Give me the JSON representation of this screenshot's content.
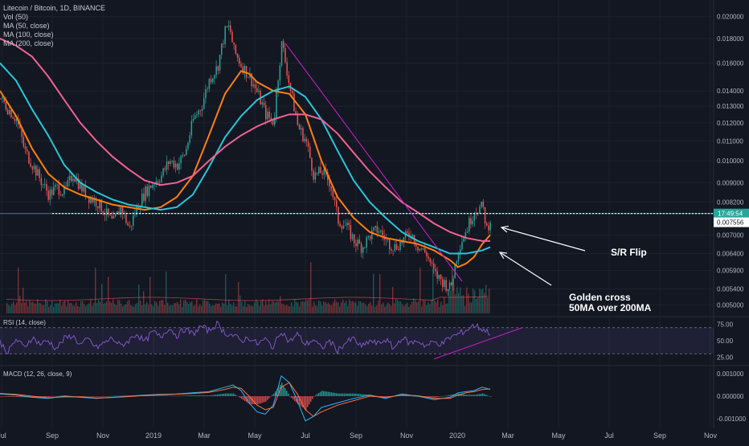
{
  "header": {
    "symbol_line": "Litecoin / Bitcoin, 1D, BINANCE",
    "indicators": [
      "Vol (50)",
      "MA (50, close)",
      "MA (100, close)",
      "MA (200, close)"
    ]
  },
  "colors": {
    "background": "#131722",
    "grid": "#1e222d",
    "price_up": "#26a69a",
    "price_down": "#ef5350",
    "ma50": "#ff7f0e",
    "ma100": "#26c6da",
    "ma200": "#f06292",
    "trendline": "#c020c0",
    "rsi": "#7e57c2",
    "macd_line": "#29b6f6",
    "signal_line": "#ff7043",
    "label_current": "#26a69a",
    "label_last": "#ffffff"
  },
  "chart_data": {
    "type": "line",
    "xaxis": {
      "labels": [
        "Jul",
        "Sep",
        "Nov",
        "2019",
        "Mar",
        "May",
        "Jul",
        "Sep",
        "Nov",
        "2020",
        "Mar",
        "May",
        "Jul",
        "Sep",
        "Nov"
      ]
    },
    "price_pane": {
      "scale": "log",
      "ylim": [
        0.0048,
        0.0215
      ],
      "ticks": [
        "0.020000",
        "0.018000",
        "0.016000",
        "0.014000",
        "0.013000",
        "0.012000",
        "0.011000",
        "0.010000",
        "0.009000",
        "0.008200",
        "0.007000",
        "0.006400",
        "0.005900",
        "0.005400",
        "0.005000"
      ],
      "tick_values": [
        0.02,
        0.018,
        0.016,
        0.014,
        0.013,
        0.012,
        0.011,
        0.01,
        0.009,
        0.0082,
        0.007,
        0.0064,
        0.0059,
        0.0054,
        0.005
      ],
      "price_label": {
        "text": "17:49:54",
        "value": 0.00776
      },
      "last_label": {
        "text": "0.007556",
        "value": 0.007556
      },
      "sr_line_value": 0.00776,
      "series": [
        {
          "key": "price",
          "x": [
            0,
            10,
            20,
            30,
            40,
            50,
            60,
            70,
            80,
            90,
            100,
            110,
            120,
            130,
            140,
            150,
            160,
            170,
            180,
            190,
            200,
            210,
            220,
            230,
            240,
            250,
            260,
            270,
            280,
            285,
            290,
            300,
            310,
            320,
            330,
            340,
            350,
            360,
            370,
            380,
            390,
            400,
            410,
            420,
            430,
            440,
            450,
            460,
            470,
            480,
            490,
            500,
            510,
            520,
            530,
            540,
            550,
            560,
            570,
            580,
            590,
            600,
            605,
            610
          ],
          "y": [
            0.0135,
            0.0128,
            0.0122,
            0.0105,
            0.0098,
            0.0091,
            0.0085,
            0.0088,
            0.0086,
            0.0094,
            0.0088,
            0.0084,
            0.0082,
            0.0078,
            0.0074,
            0.008,
            0.0072,
            0.008,
            0.0086,
            0.009,
            0.0093,
            0.01,
            0.0098,
            0.0104,
            0.0122,
            0.013,
            0.0148,
            0.0157,
            0.0188,
            0.019,
            0.017,
            0.0158,
            0.015,
            0.0138,
            0.0125,
            0.012,
            0.0176,
            0.0142,
            0.0118,
            0.011,
            0.0093,
            0.0095,
            0.009,
            0.0075,
            0.0073,
            0.0068,
            0.0066,
            0.007,
            0.0072,
            0.0068,
            0.0066,
            0.0068,
            0.0071,
            0.0066,
            0.0064,
            0.0058,
            0.0056,
            0.0054,
            0.0066,
            0.0072,
            0.0079,
            0.008,
            0.0072,
            0.0076
          ]
        },
        {
          "key": "ma50",
          "x": [
            0,
            20,
            40,
            60,
            80,
            100,
            120,
            140,
            160,
            180,
            200,
            220,
            240,
            260,
            280,
            300,
            310,
            320,
            340,
            360,
            380,
            400,
            420,
            440,
            460,
            480,
            500,
            520,
            540,
            560,
            570,
            580,
            590,
            600,
            610
          ],
          "y": [
            0.014,
            0.0124,
            0.0106,
            0.0094,
            0.0088,
            0.0085,
            0.0083,
            0.0081,
            0.008,
            0.0079,
            0.008,
            0.0084,
            0.0093,
            0.0113,
            0.0138,
            0.0154,
            0.0152,
            0.0146,
            0.014,
            0.0138,
            0.0125,
            0.01,
            0.0084,
            0.0076,
            0.0071,
            0.0069,
            0.0068,
            0.0067,
            0.0065,
            0.0062,
            0.006,
            0.0061,
            0.0063,
            0.0067,
            0.007
          ]
        },
        {
          "key": "ma100",
          "x": [
            0,
            20,
            40,
            60,
            80,
            100,
            120,
            140,
            160,
            180,
            200,
            220,
            240,
            260,
            280,
            300,
            320,
            340,
            360,
            380,
            400,
            420,
            440,
            460,
            480,
            500,
            520,
            540,
            560,
            580,
            600,
            610
          ],
          "y": [
            0.016,
            0.0147,
            0.0128,
            0.0113,
            0.0098,
            0.009,
            0.0086,
            0.0083,
            0.0081,
            0.008,
            0.0079,
            0.008,
            0.0085,
            0.0097,
            0.0112,
            0.0124,
            0.0134,
            0.014,
            0.0143,
            0.0136,
            0.0122,
            0.0105,
            0.0091,
            0.0082,
            0.0076,
            0.0071,
            0.0068,
            0.0066,
            0.0064,
            0.0064,
            0.0065,
            0.0066
          ]
        },
        {
          "key": "ma200",
          "x": [
            0,
            20,
            40,
            60,
            80,
            100,
            120,
            140,
            160,
            180,
            200,
            220,
            240,
            260,
            280,
            300,
            320,
            340,
            360,
            380,
            400,
            420,
            440,
            460,
            480,
            500,
            520,
            540,
            560,
            580,
            600,
            610
          ],
          "y": [
            0.018,
            0.0174,
            0.0165,
            0.015,
            0.0134,
            0.012,
            0.011,
            0.0102,
            0.0096,
            0.0091,
            0.0089,
            0.009,
            0.0093,
            0.01,
            0.0107,
            0.0113,
            0.0118,
            0.0122,
            0.0125,
            0.0125,
            0.0122,
            0.0114,
            0.0104,
            0.0095,
            0.0088,
            0.0082,
            0.0078,
            0.0074,
            0.0071,
            0.0069,
            0.0068,
            0.0068
          ]
        }
      ]
    },
    "rsi_pane": {
      "title": "RSI (14, close)",
      "ylim": [
        18,
        82
      ],
      "ticks": [
        "75.00",
        "50.00",
        "25.00"
      ],
      "tick_values": [
        75,
        50,
        25
      ],
      "band": [
        30,
        70
      ],
      "values_x": [
        0,
        10,
        20,
        30,
        40,
        50,
        60,
        70,
        80,
        90,
        100,
        110,
        120,
        130,
        140,
        150,
        160,
        170,
        180,
        190,
        200,
        210,
        220,
        230,
        240,
        250,
        260,
        270,
        280,
        290,
        300,
        310,
        320,
        330,
        340,
        350,
        360,
        370,
        380,
        390,
        400,
        410,
        420,
        430,
        440,
        450,
        460,
        470,
        480,
        490,
        500,
        510,
        520,
        530,
        540,
        550,
        560,
        570,
        580,
        590,
        600,
        610
      ],
      "values_y": [
        48,
        32,
        52,
        40,
        55,
        45,
        50,
        38,
        53,
        58,
        44,
        52,
        39,
        47,
        54,
        42,
        50,
        61,
        48,
        64,
        55,
        70,
        58,
        68,
        60,
        72,
        65,
        76,
        62,
        58,
        50,
        55,
        45,
        52,
        40,
        66,
        48,
        60,
        44,
        52,
        38,
        50,
        35,
        47,
        53,
        40,
        50,
        45,
        52,
        38,
        55,
        46,
        50,
        42,
        48,
        45,
        55,
        60,
        66,
        74,
        68,
        62
      ]
    },
    "macd_pane": {
      "title": "MACD (12, 26, close, 9)",
      "ylim": [
        -0.00125,
        0.00125
      ],
      "ticks": [
        "0.001000",
        "0.000000",
        "-0.001000"
      ],
      "tick_values": [
        0.001,
        0,
        -0.001
      ],
      "macd_x": [
        0,
        20,
        40,
        60,
        80,
        100,
        120,
        140,
        160,
        180,
        200,
        220,
        240,
        260,
        280,
        290,
        300,
        310,
        320,
        330,
        340,
        350,
        360,
        370,
        380,
        390,
        400,
        420,
        440,
        460,
        480,
        500,
        520,
        540,
        560,
        570,
        580,
        590,
        600,
        610
      ],
      "macd_y": [
        0.0001,
        5e-05,
        -5e-05,
        -0.0001,
        0.0,
        -5e-05,
        -0.0001,
        -5e-05,
        0.0,
        5e-05,
        8e-05,
        0.0001,
        0.00015,
        0.0002,
        0.0004,
        0.0005,
        0.00025,
        -0.0003,
        -0.0007,
        -0.0008,
        -0.0004,
        0.0009,
        0.0006,
        -0.0002,
        -0.0011,
        -0.0009,
        -0.0005,
        -0.0003,
        -0.0001,
        5e-05,
        -0.0001,
        0.0001,
        0.0,
        -0.00015,
        -5e-05,
        0.00015,
        0.0002,
        0.00025,
        0.0004,
        0.0003
      ],
      "signal_x": [
        0,
        20,
        40,
        60,
        80,
        100,
        120,
        140,
        160,
        180,
        200,
        220,
        240,
        260,
        280,
        290,
        300,
        310,
        320,
        330,
        340,
        350,
        360,
        370,
        380,
        390,
        400,
        420,
        440,
        460,
        480,
        500,
        520,
        540,
        560,
        570,
        580,
        590,
        600,
        610
      ],
      "signal_y": [
        0.00012,
        8e-05,
        0.0,
        -7e-05,
        -3e-05,
        -3e-05,
        -8e-05,
        -6e-05,
        -2e-05,
        3e-05,
        6e-05,
        9e-05,
        0.00012,
        0.00017,
        0.0003,
        0.0004,
        0.00035,
        0.0,
        -0.0004,
        -0.0006,
        -0.0005,
        0.0004,
        0.0006,
        0.0001,
        -0.0006,
        -0.0009,
        -0.0007,
        -0.0004,
        -0.0002,
        0.0,
        -5e-05,
        5e-05,
        2e-05,
        -0.0001,
        -0.0001,
        5e-05,
        0.00015,
        0.0002,
        0.0003,
        0.00032
      ]
    }
  },
  "annotations": {
    "sr_flip": "S/R Flip",
    "golden_cross_line1": "Golden cross",
    "golden_cross_line2": "50MA over 200MA"
  }
}
